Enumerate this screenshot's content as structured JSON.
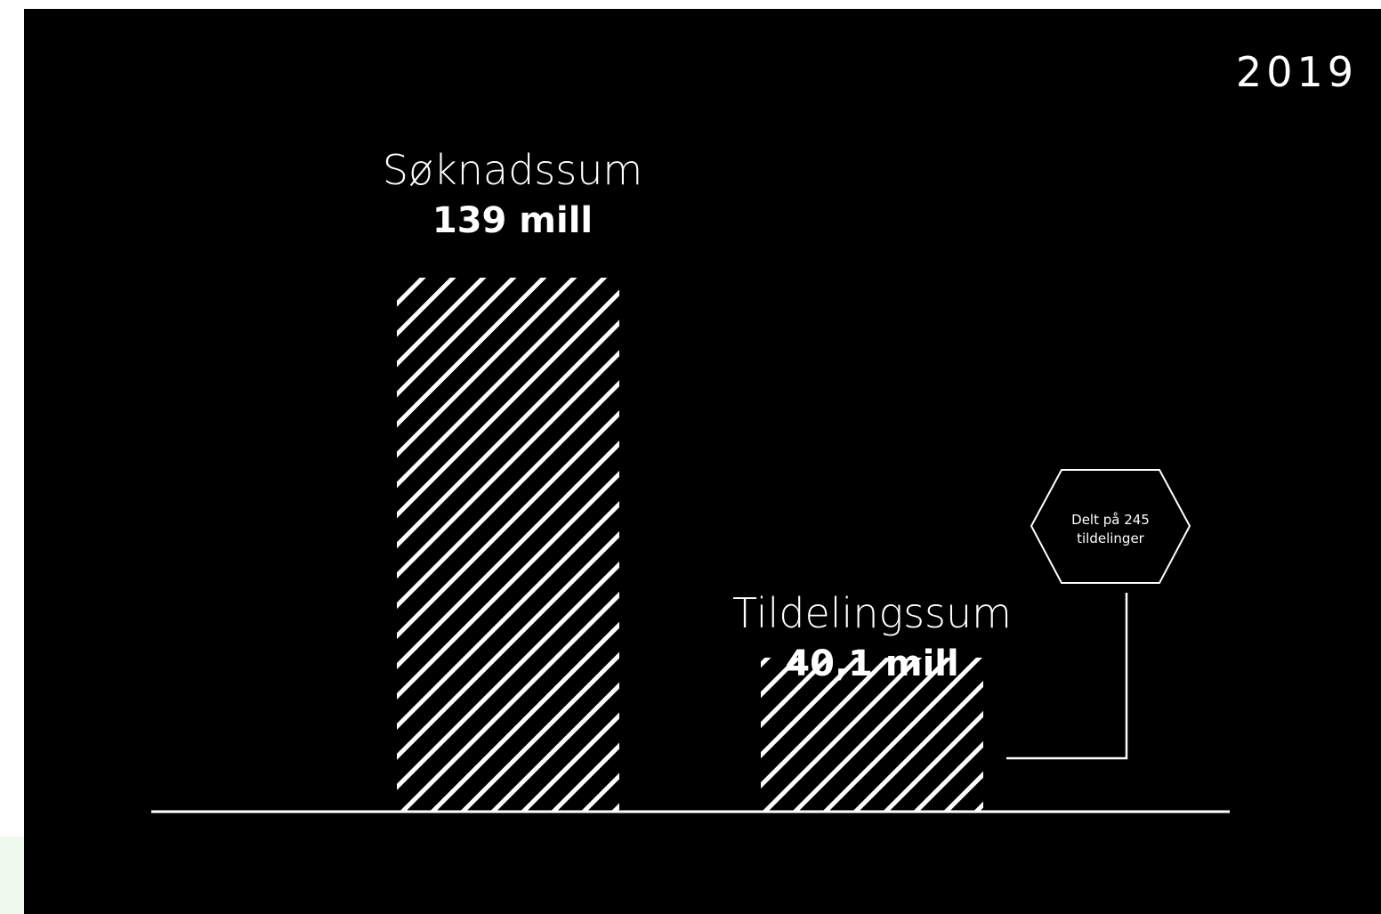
{
  "chart_data": {
    "type": "bar",
    "title": "2019",
    "categories": [
      "Søknadssum",
      "Tildelingssum"
    ],
    "values": [
      139,
      40.1
    ],
    "value_labels": [
      "139 mill",
      "40,1 mill"
    ],
    "unit": "mill",
    "ylim": [
      0,
      139
    ],
    "grid": false,
    "bar_fill": "diagonal-hatch",
    "annotation": {
      "text_line1": "Delt på 245",
      "text_line2": "tildelinger",
      "attached_to": "Tildelingssum",
      "shape": "hexagon"
    }
  },
  "colors": {
    "background": "#000000",
    "foreground": "#ffffff",
    "page": "#ffffff",
    "left_accent": "#eefaee"
  }
}
